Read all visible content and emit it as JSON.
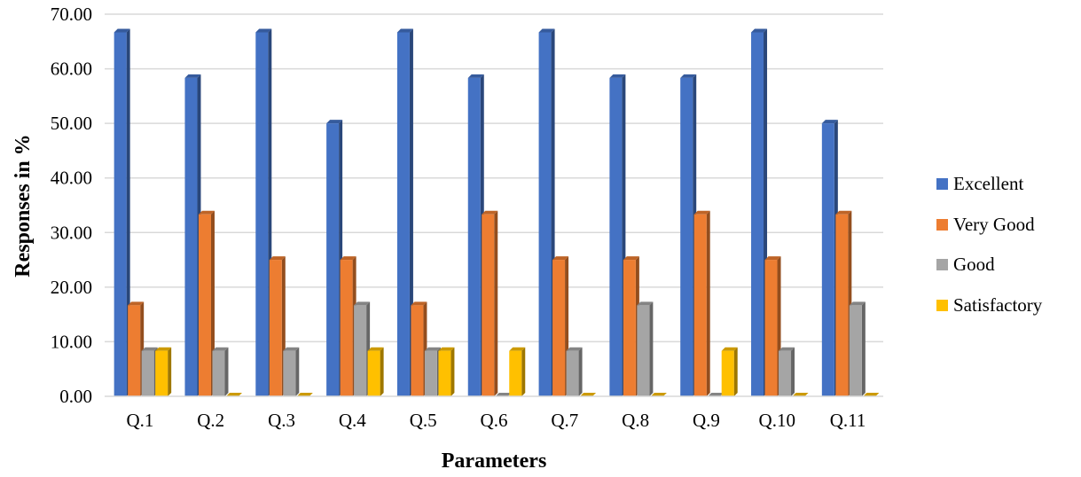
{
  "chart_data": {
    "type": "bar",
    "title": "",
    "xlabel": "Parameters",
    "ylabel": "Responses in %",
    "ylim": [
      0,
      70
    ],
    "yticks": [
      "0.00",
      "10.00",
      "20.00",
      "30.00",
      "40.00",
      "50.00",
      "60.00",
      "70.00"
    ],
    "grid": true,
    "legend_position": "right",
    "categories": [
      "Q.1",
      "Q.2",
      "Q.3",
      "Q.4",
      "Q.5",
      "Q.6",
      "Q.7",
      "Q.8",
      "Q.9",
      "Q.10",
      "Q.11"
    ],
    "series": [
      {
        "name": "Excellent",
        "color": "#4472C4",
        "values": [
          66.67,
          58.33,
          66.67,
          50.0,
          66.67,
          58.33,
          66.67,
          58.33,
          58.33,
          66.67,
          50.0
        ]
      },
      {
        "name": "Very Good",
        "color": "#ED7D31",
        "values": [
          16.67,
          33.33,
          25.0,
          25.0,
          16.67,
          33.33,
          25.0,
          25.0,
          33.33,
          25.0,
          33.33
        ]
      },
      {
        "name": "Good",
        "color": "#A5A5A5",
        "values": [
          8.33,
          8.33,
          8.33,
          16.67,
          8.33,
          0.0,
          8.33,
          16.67,
          0.0,
          8.33,
          16.67
        ]
      },
      {
        "name": "Satisfactory",
        "color": "#FFC000",
        "values": [
          8.33,
          0.0,
          0.0,
          8.33,
          8.33,
          8.33,
          0.0,
          0.0,
          8.33,
          0.0,
          0.0
        ]
      }
    ]
  }
}
